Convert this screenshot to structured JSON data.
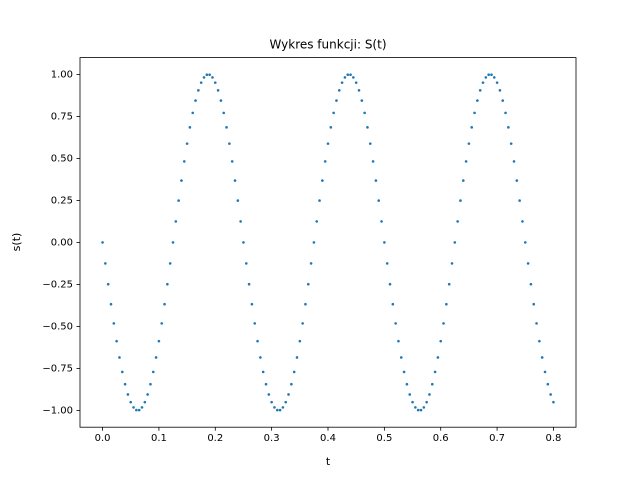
{
  "chart_data": {
    "type": "scatter",
    "title": "Wykres funkcji: S(t)",
    "xlabel": "t",
    "ylabel": "s(t)",
    "color": "#1f77b4",
    "x": [
      0,
      0.005,
      0.01,
      0.015,
      0.02,
      0.025,
      0.03,
      0.035,
      0.04,
      0.045,
      0.05,
      0.055,
      0.06,
      0.065,
      0.07,
      0.075,
      0.08,
      0.085,
      0.09,
      0.095,
      0.1,
      0.105,
      0.11,
      0.115,
      0.12,
      0.125,
      0.13,
      0.135,
      0.14,
      0.145,
      0.15,
      0.155,
      0.16,
      0.165,
      0.17,
      0.175,
      0.18,
      0.185,
      0.19,
      0.195,
      0.2,
      0.205,
      0.21,
      0.215,
      0.22,
      0.225,
      0.23,
      0.235,
      0.24,
      0.245,
      0.25,
      0.255,
      0.26,
      0.265,
      0.27,
      0.275,
      0.28,
      0.285,
      0.29,
      0.295,
      0.3,
      0.305,
      0.31,
      0.315,
      0.32,
      0.325,
      0.33,
      0.335,
      0.34,
      0.345,
      0.35,
      0.355,
      0.36,
      0.365,
      0.37,
      0.375,
      0.38,
      0.385,
      0.39,
      0.395,
      0.4,
      0.405,
      0.41,
      0.415,
      0.42,
      0.425,
      0.43,
      0.435,
      0.44,
      0.445,
      0.45,
      0.455,
      0.46,
      0.465,
      0.47,
      0.475,
      0.48,
      0.485,
      0.49,
      0.495,
      0.5,
      0.505,
      0.51,
      0.515,
      0.52,
      0.525,
      0.53,
      0.535,
      0.54,
      0.545,
      0.55,
      0.555,
      0.56,
      0.565,
      0.57,
      0.575,
      0.58,
      0.585,
      0.59,
      0.595,
      0.6,
      0.605,
      0.61,
      0.615,
      0.62,
      0.625,
      0.63,
      0.635,
      0.64,
      0.645,
      0.65,
      0.655,
      0.66,
      0.665,
      0.67,
      0.675,
      0.68,
      0.685,
      0.69,
      0.695,
      0.7,
      0.705,
      0.71,
      0.715,
      0.72,
      0.725,
      0.73,
      0.735,
      0.74,
      0.745,
      0.75,
      0.755,
      0.76,
      0.765,
      0.77,
      0.775,
      0.78,
      0.785,
      0.79,
      0.795,
      0.8
    ],
    "values": [
      0,
      -0.125,
      -0.249,
      -0.368,
      -0.482,
      -0.588,
      -0.685,
      -0.771,
      -0.844,
      -0.905,
      -0.951,
      -0.982,
      -0.998,
      -0.998,
      -0.982,
      -0.951,
      -0.905,
      -0.844,
      -0.771,
      -0.685,
      -0.588,
      -0.482,
      -0.368,
      -0.249,
      -0.125,
      0,
      0.125,
      0.249,
      0.368,
      0.482,
      0.588,
      0.685,
      0.771,
      0.844,
      0.905,
      0.951,
      0.982,
      0.998,
      0.998,
      0.982,
      0.951,
      0.905,
      0.844,
      0.771,
      0.685,
      0.588,
      0.482,
      0.368,
      0.249,
      0.125,
      0,
      -0.125,
      -0.249,
      -0.368,
      -0.482,
      -0.588,
      -0.685,
      -0.771,
      -0.844,
      -0.905,
      -0.951,
      -0.982,
      -0.998,
      -0.998,
      -0.982,
      -0.951,
      -0.905,
      -0.844,
      -0.771,
      -0.685,
      -0.588,
      -0.482,
      -0.368,
      -0.249,
      -0.125,
      0,
      0.125,
      0.249,
      0.368,
      0.482,
      0.588,
      0.685,
      0.771,
      0.844,
      0.905,
      0.951,
      0.982,
      0.998,
      0.998,
      0.982,
      0.951,
      0.905,
      0.844,
      0.771,
      0.685,
      0.588,
      0.482,
      0.368,
      0.249,
      0.125,
      0,
      -0.125,
      -0.249,
      -0.368,
      -0.482,
      -0.588,
      -0.685,
      -0.771,
      -0.844,
      -0.905,
      -0.951,
      -0.982,
      -0.998,
      -0.998,
      -0.982,
      -0.951,
      -0.905,
      -0.844,
      -0.771,
      -0.685,
      -0.588,
      -0.482,
      -0.368,
      -0.249,
      -0.125,
      0,
      0.125,
      0.249,
      0.368,
      0.482,
      0.588,
      0.685,
      0.771,
      0.844,
      0.905,
      0.951,
      0.982,
      0.998,
      0.998,
      0.982,
      0.951,
      0.905,
      0.844,
      0.771,
      0.685,
      0.588,
      0.482,
      0.368,
      0.249,
      0.125,
      0,
      -0.125,
      -0.249,
      -0.368,
      -0.482,
      -0.588,
      -0.685,
      -0.771,
      -0.844,
      -0.905,
      -0.951
    ],
    "xlim": [
      -0.04,
      0.84
    ],
    "ylim": [
      -1.1,
      1.1
    ],
    "xticks": [
      {
        "value": 0,
        "label": "0.0"
      },
      0.1,
      0.2,
      0.3,
      0.4,
      0.5,
      0.6,
      0.7,
      0.8
    ],
    "yticks": [
      {
        "value": -1,
        "label": "−1.00"
      },
      {
        "value": -0.75,
        "label": "−0.75"
      },
      {
        "value": -0.5,
        "label": "−0.50"
      },
      {
        "value": -0.25,
        "label": "−0.25"
      },
      {
        "value": 0,
        "label": "0.00"
      },
      {
        "value": 0.25,
        "label": "0.25"
      },
      {
        "value": 0.5,
        "label": "0.50"
      },
      {
        "value": 0.75,
        "label": "0.75"
      },
      {
        "value": 1,
        "label": "1.00"
      }
    ]
  }
}
